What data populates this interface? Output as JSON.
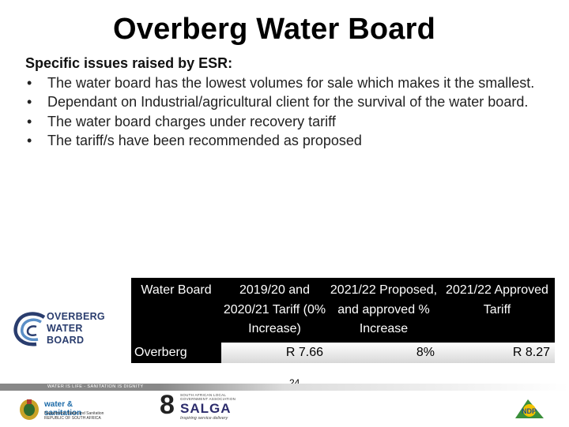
{
  "title": "Overberg Water Board",
  "content": {
    "heading": "Specific issues raised by ESR:",
    "bullets": [
      "The water board has the lowest volumes for sale which makes it the smallest.",
      "Dependant on Industrial/agricultural client for the survival of the water board.",
      "The water board charges under recovery tariff",
      "The tariff/s have been recommended as proposed"
    ]
  },
  "logo": {
    "line1": "OVERBERG",
    "line2": "WATER",
    "line3": "BOARD",
    "color": "#2a3d6e"
  },
  "table": {
    "headers": [
      "Water Board",
      "2019/20 and 2020/21 Tariff (0% Increase)",
      "2021/22 Proposed, and approved % Increase",
      "2021/22 Approved Tariff"
    ],
    "rows": [
      {
        "name": "Overberg",
        "tariff_2019_21": "R 7.66",
        "increase": "8%",
        "approved": "R 8.27"
      }
    ]
  },
  "footer": {
    "tagline": "WATER IS LIFE - SANITATION IS DIGNITY",
    "page_number": "24",
    "dws_main": "water & sanitation",
    "dws_sub": "Department: Water and Sanitation REPUBLIC OF SOUTH AFRICA",
    "salga_small": "SOUTH AFRICAN LOCAL GOVERNMENT ASSOCIATION",
    "salga_main": "SALGA",
    "salga_digit": "8",
    "salga_tagline": "Inspiring service delivery",
    "ndp_label": "NDP"
  }
}
